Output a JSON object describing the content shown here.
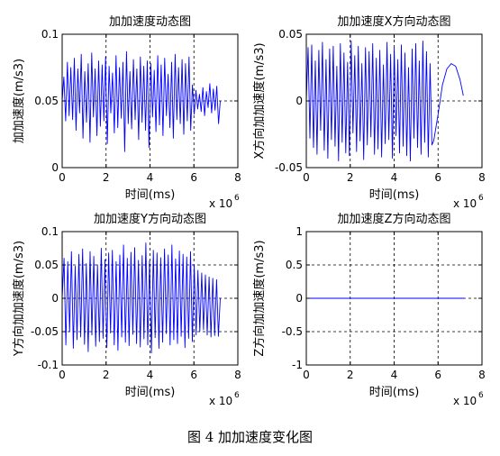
{
  "caption": "图 4  加加速度变化图",
  "colors": {
    "series": "#0000ff",
    "axis": "#000000",
    "grid": "#000000",
    "background": "#ffffff"
  },
  "chart_data": [
    {
      "type": "line",
      "title": "加加速度动态图",
      "xlabel": "时间(ms)",
      "ylabel": "加加速度(m/s3)",
      "xlim": [
        0,
        8
      ],
      "ylim": [
        0,
        0.1
      ],
      "x_exponent": "x 10",
      "x_exponent_power": "6",
      "xticks": [
        "0",
        "2",
        "4",
        "6",
        "8"
      ],
      "yticks": [
        "0",
        "0.05",
        "0.1"
      ],
      "grid": true,
      "x_range": [
        0,
        7.2
      ],
      "y_center": 0.05,
      "y_min": 0.005,
      "y_max": 0.09,
      "peaks": [
        0.068,
        0.035,
        0.079,
        0.039,
        0.075,
        0.036,
        0.082,
        0.028,
        0.074,
        0.041,
        0.085,
        0.022,
        0.072,
        0.034,
        0.078,
        0.019,
        0.086,
        0.038,
        0.074,
        0.024,
        0.08,
        0.031,
        0.077,
        0.035,
        0.083,
        0.018,
        0.076,
        0.041,
        0.071,
        0.026,
        0.084,
        0.03,
        0.075,
        0.037,
        0.079,
        0.012,
        0.087,
        0.033,
        0.072,
        0.029,
        0.081,
        0.036,
        0.074,
        0.021,
        0.083,
        0.034,
        0.076,
        0.028,
        0.08,
        0.015,
        0.078,
        0.038,
        0.073,
        0.027,
        0.084,
        0.032,
        0.077,
        0.024,
        0.082,
        0.039,
        0.07,
        0.03,
        0.079,
        0.022,
        0.085,
        0.036,
        0.075,
        0.033,
        0.081,
        0.025,
        0.078,
        0.035,
        0.083,
        0.028,
        0.062,
        0.04,
        0.058,
        0.044,
        0.055,
        0.042,
        0.06,
        0.039,
        0.057,
        0.045,
        0.063,
        0.041,
        0.059,
        0.043,
        0.061,
        0.033
      ]
    },
    {
      "type": "line",
      "title": "加加速度X方向动态图",
      "xlabel": "时间(ms)",
      "ylabel": "X方向加加速度(m/s3)",
      "xlim": [
        0,
        8
      ],
      "ylim": [
        -0.05,
        0.05
      ],
      "x_exponent": "x 10",
      "x_exponent_power": "6",
      "xticks": [
        "0",
        "2",
        "4",
        "6",
        "8"
      ],
      "yticks": [
        "-0.05",
        "0",
        "0.05"
      ],
      "grid": true,
      "x_range": [
        0,
        5.8
      ],
      "y_center": 0,
      "y_min": -0.05,
      "y_max": 0.05,
      "peaks": [
        0.04,
        -0.028,
        0.042,
        -0.035,
        0.03,
        -0.04,
        0.038,
        -0.022,
        0.044,
        -0.037,
        0.031,
        -0.043,
        0.039,
        -0.029,
        0.041,
        -0.034,
        0.026,
        -0.045,
        0.043,
        -0.031,
        0.036,
        -0.039,
        0.029,
        -0.041,
        0.045,
        -0.024,
        0.034,
        -0.038,
        0.041,
        -0.03,
        0.028,
        -0.044,
        0.04,
        -0.033,
        0.037,
        -0.027,
        0.043,
        -0.04,
        0.032,
        -0.036,
        0.038,
        -0.042,
        0.027,
        -0.032,
        0.044,
        -0.029,
        0.035,
        -0.043,
        0.04,
        -0.026,
        0.031,
        -0.039,
        0.042,
        -0.034,
        0.036,
        -0.041,
        0.025,
        -0.045,
        0.039,
        -0.028,
        0.043,
        -0.035,
        0.03,
        -0.04,
        0.045,
        -0.031,
        0.037,
        -0.042,
        0.028,
        -0.033
      ],
      "tail_segment": {
        "x": [
          5.8,
          6.0,
          6.2,
          6.4,
          6.6,
          6.8,
          7.0,
          7.15
        ],
        "y": [
          -0.03,
          -0.01,
          0.012,
          0.024,
          0.028,
          0.026,
          0.016,
          0.004
        ]
      }
    },
    {
      "type": "line",
      "title": "加加速度Y方向动态图",
      "xlabel": "时间(ms)",
      "ylabel": "Y方向加加速度(m/s3)",
      "xlim": [
        0,
        8
      ],
      "ylim": [
        -0.1,
        0.1
      ],
      "x_exponent": "x 10",
      "x_exponent_power": "6",
      "xticks": [
        "0",
        "2",
        "4",
        "6",
        "8"
      ],
      "yticks": [
        "-0.1",
        "-0.05",
        "0",
        "0.05",
        "0.1"
      ],
      "grid": true,
      "x_range": [
        0,
        7.2
      ],
      "y_center": 0,
      "y_min": -0.085,
      "y_max": 0.085,
      "peaks": [
        0.06,
        -0.07,
        0.055,
        -0.05,
        0.07,
        -0.075,
        0.048,
        -0.062,
        0.066,
        -0.058,
        0.074,
        -0.069,
        0.052,
        -0.08,
        0.07,
        -0.055,
        0.063,
        -0.072,
        0.05,
        -0.065,
        0.075,
        -0.06,
        0.058,
        -0.074,
        0.068,
        -0.052,
        0.072,
        -0.07,
        0.055,
        -0.078,
        0.065,
        -0.058,
        0.08,
        -0.066,
        0.06,
        -0.071,
        0.069,
        -0.054,
        0.076,
        -0.068,
        0.057,
        -0.073,
        0.064,
        -0.061,
        0.083,
        -0.07,
        0.056,
        -0.082,
        0.072,
        -0.059,
        0.068,
        -0.075,
        0.061,
        -0.066,
        0.074,
        -0.053,
        0.065,
        -0.07,
        0.08,
        -0.062,
        0.059,
        -0.068,
        0.071,
        -0.057,
        0.066,
        -0.074,
        0.062,
        -0.06,
        0.07,
        -0.065,
        0.05,
        -0.055,
        0.042,
        -0.05,
        0.038,
        -0.047,
        0.035,
        -0.055,
        0.032,
        -0.058,
        0.03,
        -0.056,
        0.028,
        -0.057
      ]
    },
    {
      "type": "line",
      "title": "加加速度Z方向动态图",
      "xlabel": "时间(ms)",
      "ylabel": "Z方向加加速度(m/s3)",
      "xlim": [
        0,
        8
      ],
      "ylim": [
        -1,
        1
      ],
      "x_exponent": "x 10",
      "x_exponent_power": "6",
      "xticks": [
        "0",
        "2",
        "4",
        "6",
        "8"
      ],
      "yticks": [
        "-1",
        "-0.5",
        "0",
        "0.5",
        "1"
      ],
      "grid": true,
      "series": [
        {
          "x": [
            0,
            7.2
          ],
          "y": [
            0,
            0
          ]
        }
      ]
    }
  ]
}
